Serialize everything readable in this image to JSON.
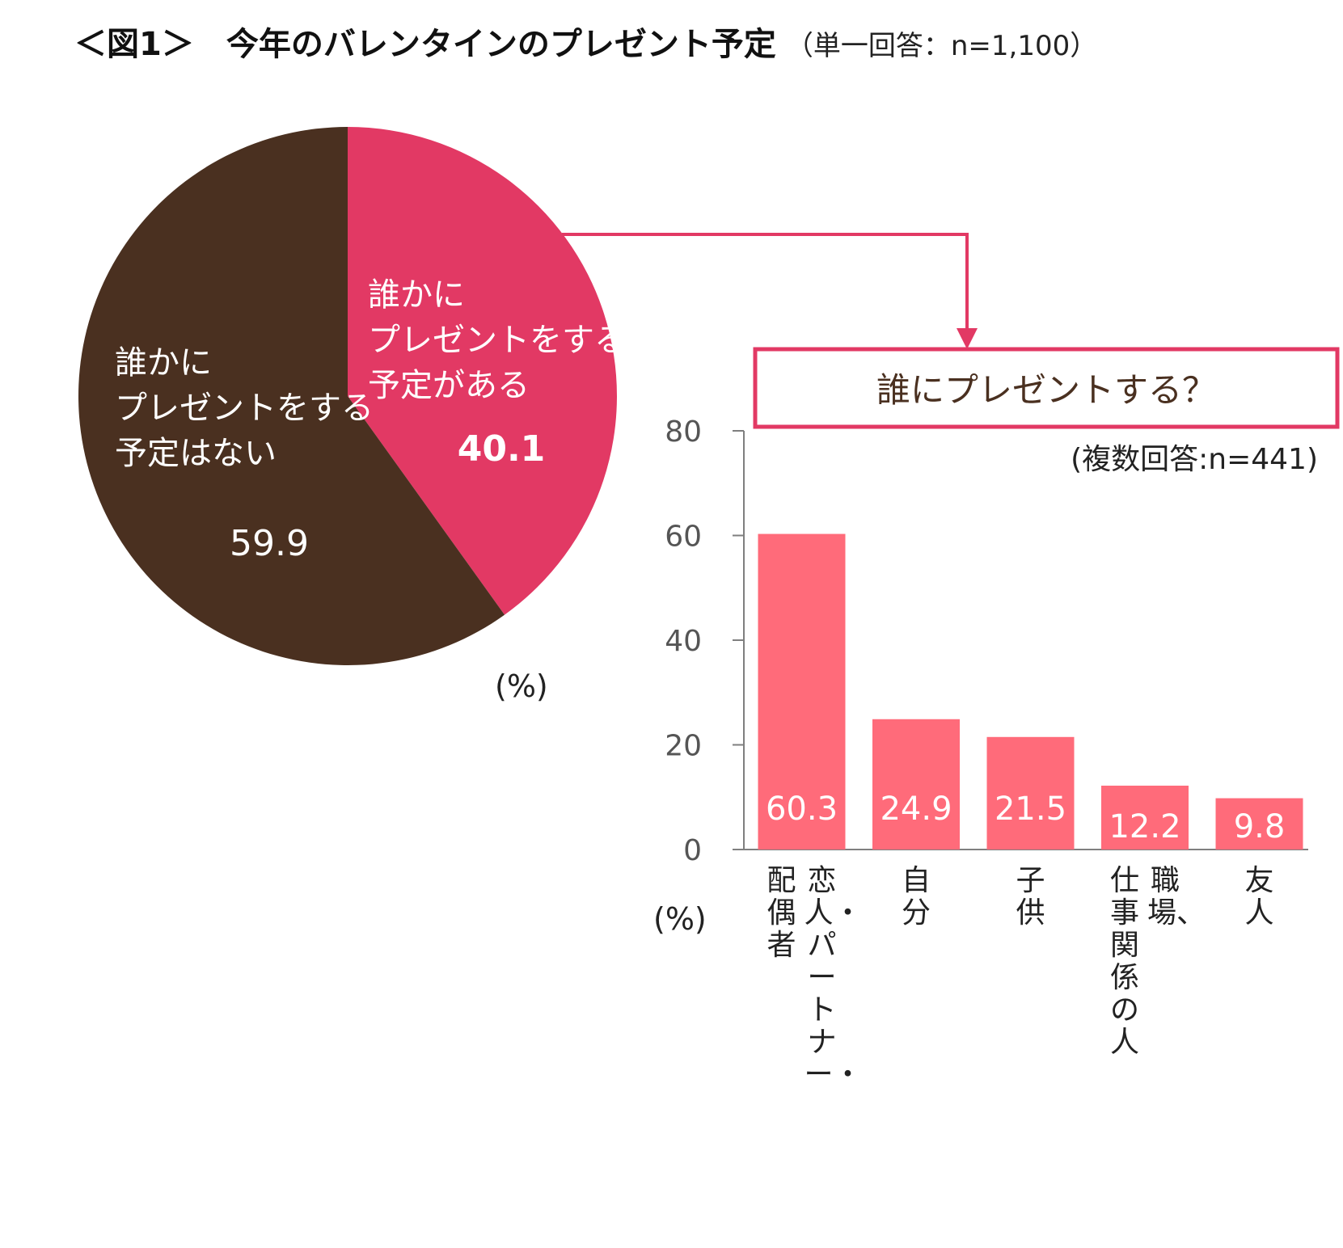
{
  "title": {
    "main_label": "＜図1＞",
    "main_text": "今年のバレンタインのプレゼント予定",
    "sub": "（単一回答：n=1,100）"
  },
  "colors": {
    "pie_yes": "#e23964",
    "pie_no": "#4a3020",
    "bar": "#ff6b7a",
    "connector": "#e23964",
    "axis": "#7f7f7f"
  },
  "chart_data": [
    {
      "type": "pie",
      "title": "今年のバレンタインのプレゼント予定",
      "slices": [
        {
          "label_lines": [
            "誰かに",
            "プレゼントをする",
            "予定がある"
          ],
          "value": 40.1,
          "value_text": "40.1"
        },
        {
          "label_lines": [
            "誰かに",
            "プレゼントをする",
            "予定はない"
          ],
          "value": 59.9,
          "value_text": "59.9"
        }
      ],
      "unit": "(%)"
    },
    {
      "type": "bar",
      "title": "誰にプレゼントする？",
      "subtitle": "(複数回答:n=441)",
      "categories": [
        {
          "columns": [
            "恋人・パートナー・",
            "配偶者"
          ]
        },
        {
          "columns": [
            "自分"
          ]
        },
        {
          "columns": [
            "子供"
          ]
        },
        {
          "columns": [
            "職場、",
            "仕事関係の人"
          ]
        },
        {
          "columns": [
            "友人"
          ]
        }
      ],
      "values": [
        60.3,
        24.9,
        21.5,
        12.2,
        9.8
      ],
      "value_texts": [
        "60.3",
        "24.9",
        "21.5",
        "12.2",
        "9.8"
      ],
      "ylim": [
        0,
        80
      ],
      "yticks": [
        0,
        20,
        40,
        60,
        80
      ],
      "ytick_labels": [
        "0",
        "20",
        "40",
        "60",
        "80"
      ],
      "ylabel": "(%)"
    }
  ]
}
